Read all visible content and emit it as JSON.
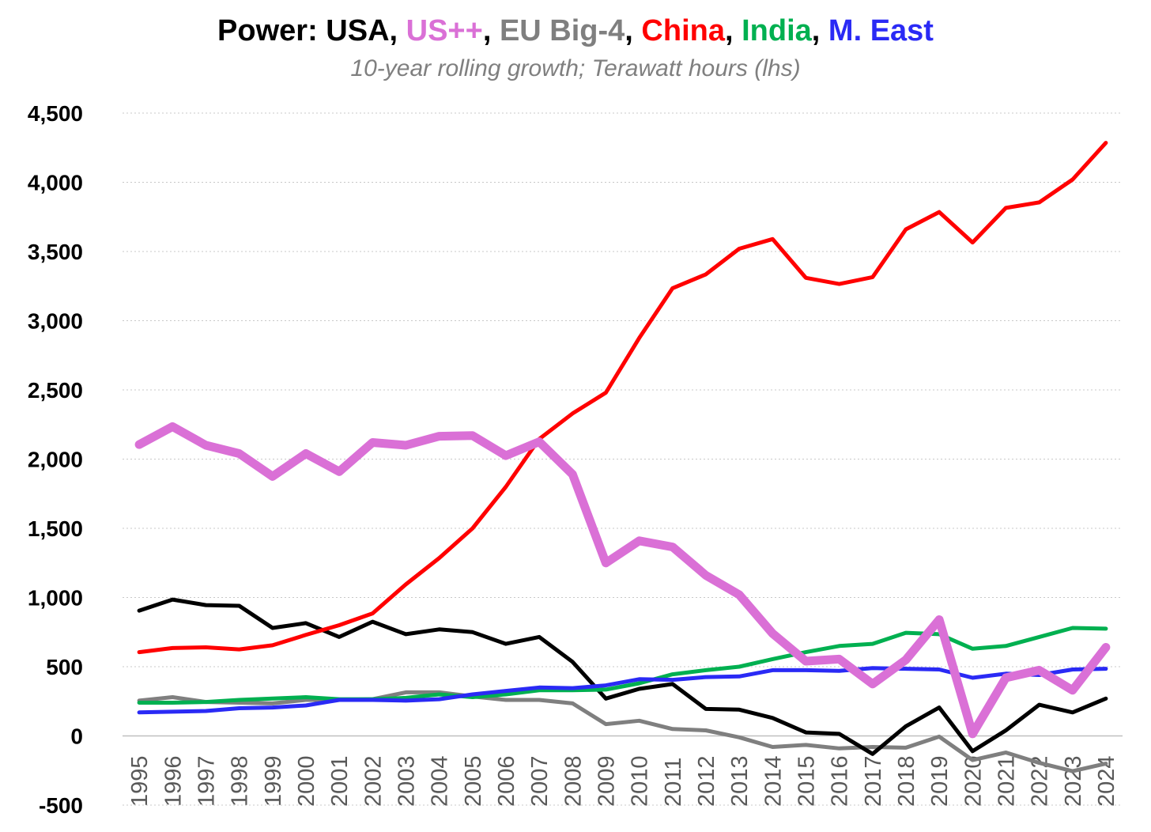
{
  "chart_data": {
    "type": "line",
    "title_parts": [
      {
        "text": "Power: USA",
        "color": "#000000"
      },
      {
        "text": ", ",
        "color": "#000000"
      },
      {
        "text": "US++",
        "color": "#DA70D6"
      },
      {
        "text": ", ",
        "color": "#000000"
      },
      {
        "text": "EU Big-4",
        "color": "#7F7F7F"
      },
      {
        "text": ", ",
        "color": "#000000"
      },
      {
        "text": "China",
        "color": "#FF0000"
      },
      {
        "text": ", ",
        "color": "#000000"
      },
      {
        "text": "India",
        "color": "#00B050"
      },
      {
        "text": ", ",
        "color": "#000000"
      },
      {
        "text": "M. East",
        "color": "#2A2AF5"
      }
    ],
    "subtitle": "10-year rolling growth; Terawatt hours (lhs)",
    "ylim": [
      -500,
      4500
    ],
    "yticks": [
      -500,
      0,
      500,
      1000,
      1500,
      2000,
      2500,
      3000,
      3500,
      4000,
      4500
    ],
    "ytick_labels": [
      "-500",
      "0",
      "500",
      "1,000",
      "1,500",
      "2,000",
      "2,500",
      "3,000",
      "3,500",
      "4,000",
      "4,500"
    ],
    "grid": true,
    "x": [
      "1995",
      "1996",
      "1997",
      "1998",
      "1999",
      "2000",
      "2001",
      "2002",
      "2003",
      "2004",
      "2005",
      "2006",
      "2007",
      "2008",
      "2009",
      "2010",
      "2011",
      "2012",
      "2013",
      "2014",
      "2015",
      "2016",
      "2017",
      "2018",
      "2019",
      "2020",
      "2021",
      "2022",
      "2023",
      "2024"
    ],
    "series": [
      {
        "name": "EU Big-4",
        "color": "#7F7F7F",
        "width": 5,
        "values": [
          255,
          280,
          245,
          240,
          235,
          260,
          260,
          265,
          315,
          315,
          285,
          260,
          260,
          235,
          85,
          110,
          50,
          40,
          -10,
          -80,
          -65,
          -90,
          -80,
          -85,
          -5,
          -175,
          -120,
          -195,
          -255,
          -200
        ]
      },
      {
        "name": "USA",
        "color": "#000000",
        "width": 5,
        "values": [
          905,
          985,
          945,
          940,
          780,
          815,
          715,
          825,
          735,
          770,
          750,
          665,
          715,
          535,
          270,
          340,
          375,
          195,
          190,
          130,
          25,
          15,
          -130,
          70,
          205,
          -110,
          40,
          225,
          170,
          270
        ]
      },
      {
        "name": "India",
        "color": "#00B050",
        "width": 5,
        "values": [
          240,
          240,
          245,
          260,
          270,
          280,
          265,
          265,
          275,
          300,
          280,
          300,
          330,
          330,
          335,
          380,
          445,
          475,
          500,
          555,
          605,
          650,
          665,
          745,
          735,
          630,
          650,
          715,
          780,
          775
        ]
      },
      {
        "name": "M. East",
        "color": "#2A2AF5",
        "width": 5,
        "values": [
          170,
          175,
          180,
          200,
          205,
          220,
          260,
          260,
          255,
          265,
          300,
          325,
          350,
          345,
          365,
          410,
          405,
          425,
          430,
          475,
          475,
          470,
          490,
          485,
          480,
          420,
          450,
          440,
          480,
          485
        ]
      },
      {
        "name": "China",
        "color": "#FF0000",
        "width": 5,
        "values": [
          605,
          635,
          640,
          625,
          655,
          730,
          800,
          885,
          1095,
          1285,
          1500,
          1800,
          2145,
          2330,
          2480,
          2875,
          3235,
          3335,
          3520,
          3590,
          3310,
          3265,
          3315,
          3660,
          3785,
          3565,
          3815,
          3855,
          4020,
          4285
        ]
      },
      {
        "name": "US++",
        "color": "#DA70D6",
        "width": 11,
        "values": [
          2105,
          2235,
          2100,
          2040,
          1875,
          2040,
          1910,
          2120,
          2100,
          2165,
          2170,
          2025,
          2125,
          1890,
          1250,
          1410,
          1365,
          1160,
          1020,
          740,
          540,
          555,
          375,
          550,
          840,
          15,
          420,
          475,
          330,
          640
        ]
      }
    ]
  }
}
